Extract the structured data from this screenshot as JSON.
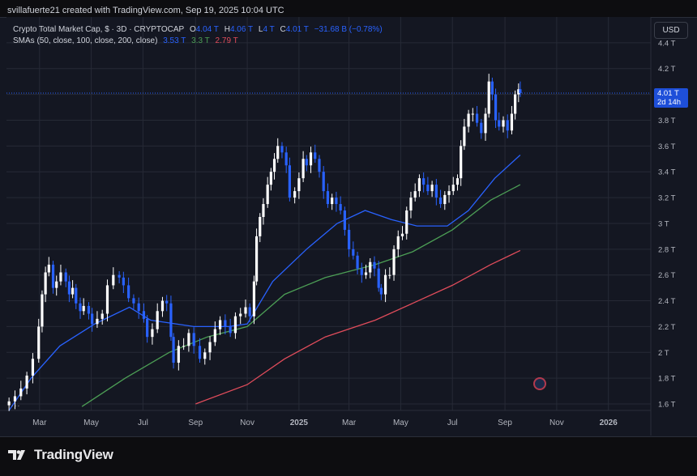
{
  "header": {
    "caption": "svillafuerte21 created with TradingView.com, Sep 19, 2025 10:04 UTC"
  },
  "legend": {
    "symbol": "Crypto Total Market Cap, $ · 3D · CRYPTOCAP",
    "open_label": "O",
    "open": "4.04 T",
    "high_label": "H",
    "high": "4.06 T",
    "low_label": "L",
    "low": "4 T",
    "close_label": "C",
    "close": "4.01 T",
    "change": "−31.68 B (−0.78%)",
    "sma_title": "SMAs (50, close, 100, close, 200, close)",
    "sma50": "3.53 T",
    "sma100": "3.3 T",
    "sma200": "2.79 T"
  },
  "currency_button": "USD",
  "price_tag": {
    "value": "4.01 T",
    "countdown": "2d 14h"
  },
  "more_dots": "...",
  "brand": "TradingView",
  "colors": {
    "background": "#141722",
    "grid": "#262a36",
    "candle_up": "#ffffff",
    "candle_down": "#2962ff",
    "sma50": "#2962ff",
    "sma100": "#4c9e55",
    "sma200": "#e04c5b",
    "price_line": "#2962ff"
  },
  "chart_data": {
    "type": "candlestick",
    "title": "Crypto Total Market Cap, $ · 3D · CRYPTOCAP",
    "y_unit": "T USD",
    "ylim": [
      1.55,
      4.6
    ],
    "y_ticks": [
      "4.4 T",
      "4.2 T",
      "4 T",
      "3.8 T",
      "3.6 T",
      "3.4 T",
      "3.2 T",
      "3 T",
      "2.8 T",
      "2.6 T",
      "2.4 T",
      "2.2 T",
      "2 T",
      "1.8 T",
      "1.6 T"
    ],
    "y_tick_values": [
      4.4,
      4.2,
      4.0,
      3.8,
      3.6,
      3.4,
      3.2,
      3.0,
      2.8,
      2.6,
      2.4,
      2.2,
      2.0,
      1.8,
      1.6
    ],
    "x_ticks": [
      "Mar",
      "May",
      "Jul",
      "Sep",
      "Nov",
      "2025",
      "Mar",
      "May",
      "Jul",
      "Sep",
      "Nov",
      "2026"
    ],
    "x_tick_dates": [
      "2024-03-01",
      "2024-05-01",
      "2024-07-01",
      "2024-09-01",
      "2024-11-01",
      "2025-01-01",
      "2025-03-01",
      "2025-05-01",
      "2025-07-01",
      "2025-09-01",
      "2025-11-01",
      "2026-01-01"
    ],
    "x_range": [
      "2024-01-22",
      "2026-02-20"
    ],
    "grid": true,
    "current_price": 4.01,
    "series_close": [
      [
        "2024-01-25",
        1.62
      ],
      [
        "2024-02-01",
        1.66
      ],
      [
        "2024-02-08",
        1.72
      ],
      [
        "2024-02-15",
        1.82
      ],
      [
        "2024-02-22",
        1.95
      ],
      [
        "2024-02-29",
        2.2
      ],
      [
        "2024-03-04",
        2.45
      ],
      [
        "2024-03-08",
        2.62
      ],
      [
        "2024-03-12",
        2.68
      ],
      [
        "2024-03-17",
        2.5
      ],
      [
        "2024-03-21",
        2.55
      ],
      [
        "2024-03-26",
        2.62
      ],
      [
        "2024-04-01",
        2.55
      ],
      [
        "2024-04-05",
        2.45
      ],
      [
        "2024-04-09",
        2.5
      ],
      [
        "2024-04-13",
        2.38
      ],
      [
        "2024-04-18",
        2.32
      ],
      [
        "2024-04-22",
        2.36
      ],
      [
        "2024-04-28",
        2.3
      ],
      [
        "2024-05-02",
        2.22
      ],
      [
        "2024-05-08",
        2.26
      ],
      [
        "2024-05-14",
        2.3
      ],
      [
        "2024-05-20",
        2.52
      ],
      [
        "2024-05-27",
        2.6
      ],
      [
        "2024-06-03",
        2.58
      ],
      [
        "2024-06-08",
        2.52
      ],
      [
        "2024-06-14",
        2.42
      ],
      [
        "2024-06-20",
        2.38
      ],
      [
        "2024-06-26",
        2.32
      ],
      [
        "2024-07-02",
        2.26
      ],
      [
        "2024-07-06",
        2.12
      ],
      [
        "2024-07-12",
        2.18
      ],
      [
        "2024-07-18",
        2.32
      ],
      [
        "2024-07-24",
        2.4
      ],
      [
        "2024-07-29",
        2.38
      ],
      [
        "2024-08-03",
        2.12
      ],
      [
        "2024-08-06",
        1.92
      ],
      [
        "2024-08-12",
        2.05
      ],
      [
        "2024-08-18",
        2.05
      ],
      [
        "2024-08-24",
        2.15
      ],
      [
        "2024-08-30",
        2.05
      ],
      [
        "2024-09-06",
        1.95
      ],
      [
        "2024-09-12",
        2.0
      ],
      [
        "2024-09-18",
        2.08
      ],
      [
        "2024-09-24",
        2.18
      ],
      [
        "2024-09-30",
        2.25
      ],
      [
        "2024-10-06",
        2.2
      ],
      [
        "2024-10-12",
        2.15
      ],
      [
        "2024-10-18",
        2.28
      ],
      [
        "2024-10-24",
        2.3
      ],
      [
        "2024-10-30",
        2.35
      ],
      [
        "2024-11-04",
        2.28
      ],
      [
        "2024-11-09",
        2.55
      ],
      [
        "2024-11-12",
        2.9
      ],
      [
        "2024-11-16",
        3.05
      ],
      [
        "2024-11-20",
        3.15
      ],
      [
        "2024-11-25",
        3.3
      ],
      [
        "2024-11-29",
        3.4
      ],
      [
        "2024-12-03",
        3.5
      ],
      [
        "2024-12-07",
        3.6
      ],
      [
        "2024-12-12",
        3.55
      ],
      [
        "2024-12-17",
        3.45
      ],
      [
        "2024-12-21",
        3.2
      ],
      [
        "2024-12-27",
        3.25
      ],
      [
        "2025-01-01",
        3.35
      ],
      [
        "2025-01-06",
        3.5
      ],
      [
        "2025-01-10",
        3.45
      ],
      [
        "2025-01-15",
        3.55
      ],
      [
        "2025-01-20",
        3.5
      ],
      [
        "2025-01-25",
        3.4
      ],
      [
        "2025-01-30",
        3.25
      ],
      [
        "2025-02-04",
        3.15
      ],
      [
        "2025-02-09",
        3.2
      ],
      [
        "2025-02-14",
        3.15
      ],
      [
        "2025-02-19",
        3.1
      ],
      [
        "2025-02-24",
        2.95
      ],
      [
        "2025-03-01",
        2.8
      ],
      [
        "2025-03-06",
        2.75
      ],
      [
        "2025-03-11",
        2.65
      ],
      [
        "2025-03-16",
        2.6
      ],
      [
        "2025-03-21",
        2.62
      ],
      [
        "2025-03-26",
        2.7
      ],
      [
        "2025-03-31",
        2.65
      ],
      [
        "2025-04-05",
        2.5
      ],
      [
        "2025-04-08",
        2.45
      ],
      [
        "2025-04-13",
        2.6
      ],
      [
        "2025-04-18",
        2.6
      ],
      [
        "2025-04-23",
        2.8
      ],
      [
        "2025-04-28",
        2.9
      ],
      [
        "2025-05-03",
        2.92
      ],
      [
        "2025-05-08",
        3.1
      ],
      [
        "2025-05-13",
        3.2
      ],
      [
        "2025-05-18",
        3.25
      ],
      [
        "2025-05-23",
        3.35
      ],
      [
        "2025-05-28",
        3.3
      ],
      [
        "2025-06-02",
        3.25
      ],
      [
        "2025-06-07",
        3.3
      ],
      [
        "2025-06-12",
        3.2
      ],
      [
        "2025-06-17",
        3.15
      ],
      [
        "2025-06-22",
        3.22
      ],
      [
        "2025-06-27",
        3.25
      ],
      [
        "2025-07-02",
        3.3
      ],
      [
        "2025-07-07",
        3.35
      ],
      [
        "2025-07-11",
        3.6
      ],
      [
        "2025-07-15",
        3.75
      ],
      [
        "2025-07-20",
        3.85
      ],
      [
        "2025-07-25",
        3.85
      ],
      [
        "2025-07-30",
        3.78
      ],
      [
        "2025-08-04",
        3.7
      ],
      [
        "2025-08-09",
        3.85
      ],
      [
        "2025-08-13",
        4.1
      ],
      [
        "2025-08-17",
        4.0
      ],
      [
        "2025-08-21",
        3.8
      ],
      [
        "2025-08-25",
        3.75
      ],
      [
        "2025-08-30",
        3.8
      ],
      [
        "2025-09-04",
        3.72
      ],
      [
        "2025-09-09",
        3.85
      ],
      [
        "2025-09-13",
        4.0
      ],
      [
        "2025-09-17",
        4.04
      ],
      [
        "2025-09-19",
        4.01
      ]
    ],
    "sma_series": [
      {
        "name": "SMA 50",
        "color": "#2962ff",
        "last": 3.53,
        "points": [
          [
            "2024-01-25",
            1.55
          ],
          [
            "2024-02-20",
            1.8
          ],
          [
            "2024-03-25",
            2.05
          ],
          [
            "2024-05-05",
            2.22
          ],
          [
            "2024-06-15",
            2.35
          ],
          [
            "2024-07-10",
            2.25
          ],
          [
            "2024-08-30",
            2.2
          ],
          [
            "2024-10-10",
            2.2
          ],
          [
            "2024-11-01",
            2.22
          ],
          [
            "2024-12-01",
            2.55
          ],
          [
            "2025-01-10",
            2.8
          ],
          [
            "2025-02-15",
            3.0
          ],
          [
            "2025-03-20",
            3.1
          ],
          [
            "2025-04-20",
            3.03
          ],
          [
            "2025-05-20",
            2.98
          ],
          [
            "2025-06-25",
            2.98
          ],
          [
            "2025-07-20",
            3.1
          ],
          [
            "2025-08-20",
            3.35
          ],
          [
            "2025-09-19",
            3.53
          ]
        ]
      },
      {
        "name": "SMA 100",
        "color": "#4c9e55",
        "last": 3.3,
        "points": [
          [
            "2024-04-20",
            1.58
          ],
          [
            "2024-06-10",
            1.8
          ],
          [
            "2024-08-01",
            2.0
          ],
          [
            "2024-09-15",
            2.12
          ],
          [
            "2024-11-01",
            2.2
          ],
          [
            "2024-12-15",
            2.45
          ],
          [
            "2025-02-01",
            2.58
          ],
          [
            "2025-04-01",
            2.68
          ],
          [
            "2025-05-15",
            2.78
          ],
          [
            "2025-07-01",
            2.95
          ],
          [
            "2025-08-15",
            3.18
          ],
          [
            "2025-09-19",
            3.3
          ]
        ]
      },
      {
        "name": "SMA 200",
        "color": "#e04c5b",
        "last": 2.79,
        "points": [
          [
            "2024-09-01",
            1.6
          ],
          [
            "2024-11-01",
            1.75
          ],
          [
            "2024-12-15",
            1.95
          ],
          [
            "2025-02-01",
            2.12
          ],
          [
            "2025-04-01",
            2.25
          ],
          [
            "2025-05-15",
            2.38
          ],
          [
            "2025-07-01",
            2.52
          ],
          [
            "2025-08-15",
            2.68
          ],
          [
            "2025-09-19",
            2.79
          ]
        ]
      }
    ]
  }
}
